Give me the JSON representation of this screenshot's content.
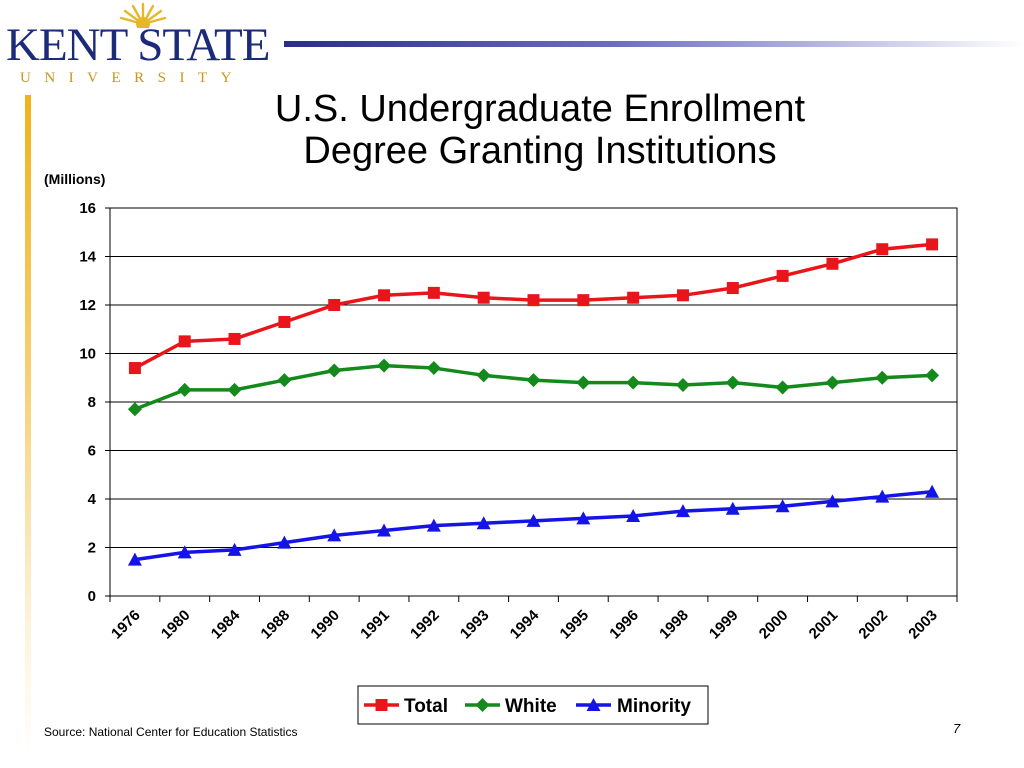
{
  "logo": {
    "name": "KENT STATE",
    "sub": "UNIVERSITY"
  },
  "title": {
    "line1": "U.S. Undergraduate Enrollment",
    "line2": "Degree Granting Institutions"
  },
  "units_label": "(Millions)",
  "source": "Source: National Center for Education Statistics",
  "page_number": "7",
  "colors": {
    "total": "#e8161b",
    "white": "#138a1b",
    "minority": "#1414e6",
    "logo_blue": "#1c2a7a",
    "logo_gold": "#c9951d"
  },
  "chart_data": {
    "type": "line",
    "categories": [
      "1976",
      "1980",
      "1984",
      "1988",
      "1990",
      "1991",
      "1992",
      "1993",
      "1994",
      "1995",
      "1996",
      "1998",
      "1999",
      "2000",
      "2001",
      "2002",
      "2003"
    ],
    "ylim": [
      0,
      16
    ],
    "yticks": [
      0,
      2,
      4,
      6,
      8,
      10,
      12,
      14,
      16
    ],
    "grid": true,
    "legend": "bottom-center",
    "series": [
      {
        "name": "Total",
        "marker": "square",
        "values": [
          9.4,
          10.5,
          10.6,
          11.3,
          12.0,
          12.4,
          12.5,
          12.3,
          12.2,
          12.2,
          12.3,
          12.4,
          12.7,
          13.2,
          13.7,
          14.3,
          14.5
        ]
      },
      {
        "name": "White",
        "marker": "diamond",
        "values": [
          7.7,
          8.5,
          8.5,
          8.9,
          9.3,
          9.5,
          9.4,
          9.1,
          8.9,
          8.8,
          8.8,
          8.7,
          8.8,
          8.6,
          8.8,
          9.0,
          9.1
        ]
      },
      {
        "name": "Minority",
        "marker": "triangle",
        "values": [
          1.5,
          1.8,
          1.9,
          2.2,
          2.5,
          2.7,
          2.9,
          3.0,
          3.1,
          3.2,
          3.3,
          3.5,
          3.6,
          3.7,
          3.9,
          4.1,
          4.3
        ]
      }
    ]
  }
}
